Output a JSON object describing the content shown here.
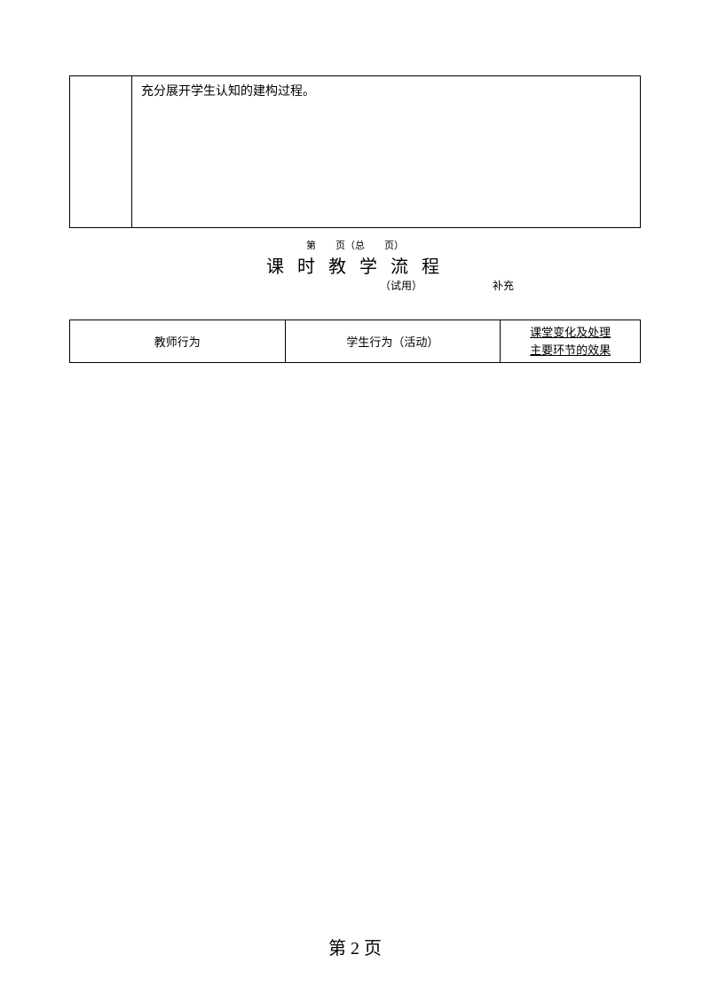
{
  "top_box": {
    "text": "充分展开学生认知的建构过程。"
  },
  "page_num_header": "第　　页（总　　页）",
  "title": "课 时 教 学 流 程",
  "sub_trial": "（试用）",
  "sub_supplement": "补充",
  "table": {
    "col1": "教师行为",
    "col2": "学生行为（活动）",
    "col3_line1": "课堂变化及处理",
    "col3_line2": "主要环节的效果"
  },
  "footer": "第 2 页"
}
